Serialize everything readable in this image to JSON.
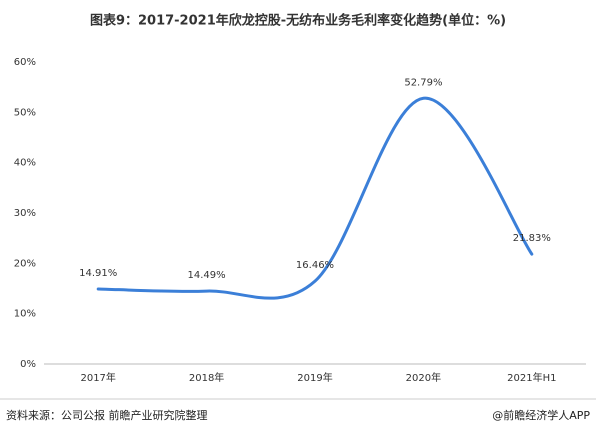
{
  "chart_data": {
    "type": "line",
    "title": "图表9：2017-2021年欣龙控股-无纺布业务毛利率变化趋势(单位：%)",
    "categories": [
      "2017年",
      "2018年",
      "2019年",
      "2020年",
      "2021年H1"
    ],
    "series": [
      {
        "name": "毛利率",
        "color": "#3b7fd8",
        "values": [
          14.91,
          14.49,
          16.46,
          52.79,
          21.83
        ],
        "value_labels": [
          "14.91%",
          "14.49%",
          "16.46%",
          "52.79%",
          "21.83%"
        ]
      }
    ],
    "ylim": [
      0,
      60
    ],
    "yticks": [
      {
        "value": 0,
        "label": "0%"
      },
      {
        "value": 10,
        "label": "10%"
      },
      {
        "value": 20,
        "label": "20%"
      },
      {
        "value": 30,
        "label": "30%"
      },
      {
        "value": 40,
        "label": "40%"
      },
      {
        "value": 50,
        "label": "50%"
      },
      {
        "value": 60,
        "label": "60%"
      }
    ],
    "grid": false,
    "source": "资料来源：公司公报 前瞻产业研究院整理",
    "credit": "@前瞻经济学人APP"
  }
}
